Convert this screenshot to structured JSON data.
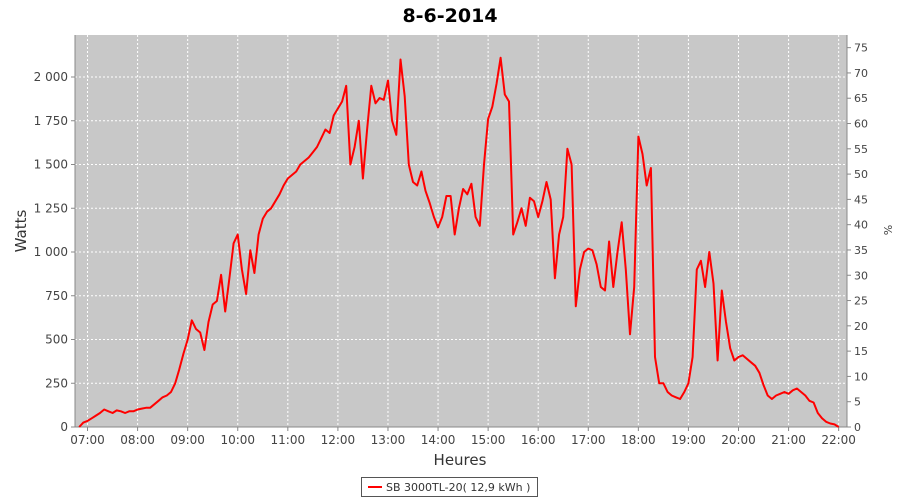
{
  "chart_data": {
    "type": "line",
    "title": "8-6-2014",
    "xlabel": "Heures",
    "ylabel": "Watts",
    "ylabel_right": "%",
    "x_ticks": [
      "07:00",
      "08:00",
      "09:00",
      "10:00",
      "11:00",
      "12:00",
      "13:00",
      "14:00",
      "15:00",
      "16:00",
      "17:00",
      "18:00",
      "19:00",
      "20:00",
      "21:00",
      "22:00"
    ],
    "y_ticks": [
      "0",
      "250",
      "500",
      "750",
      "1 000",
      "1 250",
      "1 500",
      "1 750",
      "2 000"
    ],
    "y2_ticks": [
      "0",
      "5",
      "10",
      "15",
      "20",
      "25",
      "30",
      "35",
      "40",
      "45",
      "50",
      "55",
      "60",
      "65",
      "70",
      "75"
    ],
    "xlim": [
      "06:45",
      "22:10"
    ],
    "ylim": [
      0,
      2240
    ],
    "y2lim": [
      0,
      77.5
    ],
    "grid": true,
    "legend_position": "bottom-center",
    "colors": {
      "plot_bg": "#c8c8c8",
      "series": "#ff0000",
      "grid": "#ffffff"
    },
    "series": [
      {
        "name": "SB 3000TL-20( 12,9 kWh )",
        "x": [
          "06:50",
          "06:55",
          "07:00",
          "07:05",
          "07:10",
          "07:15",
          "07:20",
          "07:25",
          "07:30",
          "07:35",
          "07:40",
          "07:45",
          "07:50",
          "07:55",
          "08:00",
          "08:05",
          "08:10",
          "08:15",
          "08:20",
          "08:25",
          "08:30",
          "08:35",
          "08:40",
          "08:45",
          "08:50",
          "08:55",
          "09:00",
          "09:05",
          "09:10",
          "09:15",
          "09:20",
          "09:25",
          "09:30",
          "09:35",
          "09:40",
          "09:45",
          "09:50",
          "09:55",
          "10:00",
          "10:05",
          "10:10",
          "10:15",
          "10:20",
          "10:25",
          "10:30",
          "10:35",
          "10:40",
          "10:45",
          "10:50",
          "10:55",
          "11:00",
          "11:05",
          "11:10",
          "11:15",
          "11:20",
          "11:25",
          "11:30",
          "11:35",
          "11:40",
          "11:45",
          "11:50",
          "11:55",
          "12:00",
          "12:05",
          "12:10",
          "12:15",
          "12:20",
          "12:25",
          "12:30",
          "12:35",
          "12:40",
          "12:45",
          "12:50",
          "12:55",
          "13:00",
          "13:05",
          "13:10",
          "13:15",
          "13:20",
          "13:25",
          "13:30",
          "13:35",
          "13:40",
          "13:45",
          "13:50",
          "13:55",
          "14:00",
          "14:05",
          "14:10",
          "14:15",
          "14:20",
          "14:25",
          "14:30",
          "14:35",
          "14:40",
          "14:45",
          "14:50",
          "14:55",
          "15:00",
          "15:05",
          "15:10",
          "15:15",
          "15:20",
          "15:25",
          "15:30",
          "15:35",
          "15:40",
          "15:45",
          "15:50",
          "15:55",
          "16:00",
          "16:05",
          "16:10",
          "16:15",
          "16:20",
          "16:25",
          "16:30",
          "16:35",
          "16:40",
          "16:45",
          "16:50",
          "16:55",
          "17:00",
          "17:05",
          "17:10",
          "17:15",
          "17:20",
          "17:25",
          "17:30",
          "17:35",
          "17:40",
          "17:45",
          "17:50",
          "17:55",
          "18:00",
          "18:05",
          "18:10",
          "18:15",
          "18:20",
          "18:25",
          "18:30",
          "18:35",
          "18:40",
          "18:45",
          "18:50",
          "18:55",
          "19:00",
          "19:05",
          "19:10",
          "19:15",
          "19:20",
          "19:25",
          "19:30",
          "19:35",
          "19:40",
          "19:45",
          "19:50",
          "19:55",
          "20:00",
          "20:05",
          "20:10",
          "20:15",
          "20:20",
          "20:25",
          "20:30",
          "20:35",
          "20:40",
          "20:45",
          "20:50",
          "20:55",
          "21:00",
          "21:05",
          "21:10",
          "21:15",
          "21:20",
          "21:25",
          "21:30",
          "21:35",
          "21:40",
          "21:45",
          "21:50",
          "21:55",
          "22:00"
        ],
        "values": [
          0,
          25,
          35,
          50,
          65,
          80,
          100,
          90,
          80,
          95,
          90,
          80,
          90,
          90,
          100,
          105,
          110,
          110,
          130,
          150,
          170,
          180,
          200,
          250,
          330,
          420,
          500,
          610,
          560,
          540,
          440,
          600,
          700,
          720,
          870,
          660,
          850,
          1050,
          1100,
          900,
          760,
          1010,
          880,
          1100,
          1190,
          1230,
          1250,
          1290,
          1330,
          1380,
          1420,
          1440,
          1460,
          1500,
          1520,
          1540,
          1570,
          1600,
          1650,
          1700,
          1680,
          1780,
          1820,
          1860,
          1950,
          1500,
          1600,
          1750,
          1420,
          1700,
          1950,
          1850,
          1880,
          1870,
          1980,
          1750,
          1670,
          2100,
          1890,
          1500,
          1400,
          1380,
          1460,
          1350,
          1280,
          1200,
          1140,
          1200,
          1320,
          1320,
          1100,
          1250,
          1360,
          1330,
          1390,
          1200,
          1150,
          1500,
          1760,
          1830,
          1960,
          2110,
          1900,
          1860,
          1100,
          1170,
          1250,
          1150,
          1310,
          1290,
          1200,
          1290,
          1400,
          1300,
          850,
          1100,
          1200,
          1590,
          1500,
          690,
          900,
          1000,
          1020,
          1010,
          930,
          800,
          780,
          1060,
          800,
          1000,
          1170,
          900,
          530,
          800,
          1660,
          1560,
          1380,
          1480,
          400,
          250,
          250,
          200,
          180,
          170,
          160,
          200,
          250,
          400,
          900,
          950,
          800,
          1000,
          820,
          380,
          780,
          600,
          450,
          380,
          400,
          410,
          390,
          370,
          350,
          310,
          240,
          180,
          160,
          180,
          190,
          200,
          190,
          210,
          220,
          200,
          180,
          150,
          140,
          80,
          50,
          30,
          20,
          15,
          0
        ]
      }
    ]
  }
}
